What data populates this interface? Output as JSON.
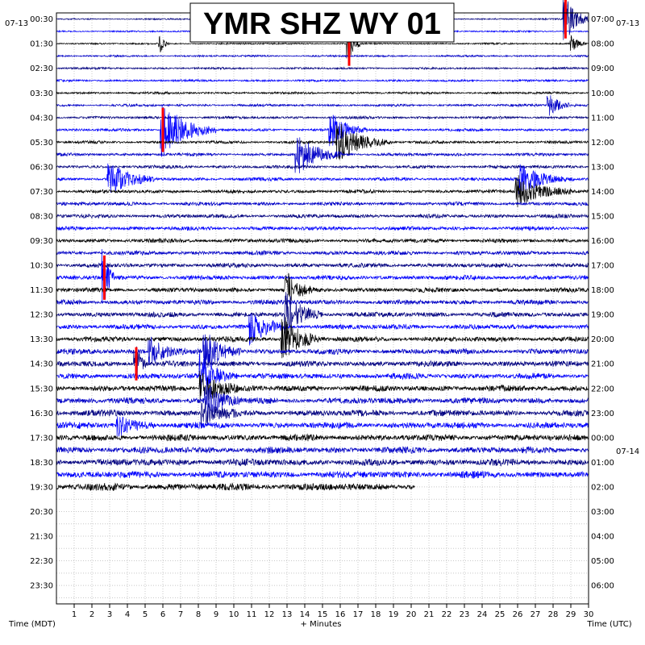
{
  "chart_data": {
    "type": "line",
    "title": "YMR SHZ WY 01",
    "xlabel": "+ Minutes",
    "ylabel_left": "Time (MDT)",
    "ylabel_right": "Time (UTC)",
    "date_left": "07-13",
    "date_right": "07-13",
    "date_right_next": "07-14",
    "xlim": [
      0,
      30
    ],
    "x_ticks": [
      1,
      2,
      3,
      4,
      5,
      6,
      7,
      8,
      9,
      10,
      11,
      12,
      13,
      14,
      15,
      16,
      17,
      18,
      19,
      20,
      21,
      22,
      23,
      24,
      25,
      26,
      27,
      28,
      29,
      30
    ],
    "row_minutes": 30,
    "left_hour_labels": [
      "00:30",
      "01:30",
      "02:30",
      "03:30",
      "04:30",
      "05:30",
      "06:30",
      "07:30",
      "08:30",
      "09:30",
      "10:30",
      "11:30",
      "12:30",
      "13:30",
      "14:30",
      "15:30",
      "16:30",
      "17:30",
      "18:30",
      "19:30",
      "20:30",
      "21:30",
      "22:30",
      "23:30"
    ],
    "right_hour_labels": [
      "07:00",
      "08:00",
      "09:00",
      "10:00",
      "11:00",
      "12:00",
      "13:00",
      "14:00",
      "15:00",
      "16:00",
      "17:00",
      "18:00",
      "19:00",
      "20:00",
      "21:00",
      "22:00",
      "23:00",
      "00:00",
      "01:00",
      "02:00",
      "03:00",
      "04:00",
      "05:00",
      "06:00"
    ],
    "series_colors": [
      "#000080",
      "#0000ff",
      "#000000",
      "#0000c8"
    ],
    "clip_color": "#ff0000",
    "total_rows": 48,
    "data_rows": 39,
    "last_row_end_minute": 20.2,
    "events": [
      {
        "row": 0,
        "minute": 28.7,
        "amp": 3.5,
        "dur": 1.5,
        "clip": true
      },
      {
        "row": 2,
        "minute": 5.9,
        "amp": 1.2,
        "dur": 0.5,
        "clip": false
      },
      {
        "row": 2,
        "minute": 16.5,
        "amp": 4.0,
        "dur": 0.6,
        "clip": true
      },
      {
        "row": 2,
        "minute": 29.1,
        "amp": 1.2,
        "dur": 0.8,
        "clip": false
      },
      {
        "row": 7,
        "minute": 27.8,
        "amp": 1.5,
        "dur": 1.5,
        "clip": false
      },
      {
        "row": 9,
        "minute": 6.0,
        "amp": 4.0,
        "dur": 3.0,
        "clip": true
      },
      {
        "row": 9,
        "minute": 15.5,
        "amp": 2.5,
        "dur": 2.0,
        "clip": false
      },
      {
        "row": 10,
        "minute": 15.9,
        "amp": 3.0,
        "dur": 3.0,
        "clip": false
      },
      {
        "row": 11,
        "minute": 13.6,
        "amp": 3.0,
        "dur": 2.5,
        "clip": false
      },
      {
        "row": 13,
        "minute": 3.0,
        "amp": 2.5,
        "dur": 2.5,
        "clip": false
      },
      {
        "row": 13,
        "minute": 26.2,
        "amp": 2.0,
        "dur": 3.0,
        "clip": false
      },
      {
        "row": 14,
        "minute": 26.0,
        "amp": 2.5,
        "dur": 3.0,
        "clip": false
      },
      {
        "row": 21,
        "minute": 2.7,
        "amp": 4.0,
        "dur": 0.6,
        "clip": true
      },
      {
        "row": 22,
        "minute": 13.0,
        "amp": 2.5,
        "dur": 1.5,
        "clip": false
      },
      {
        "row": 24,
        "minute": 13.0,
        "amp": 3.0,
        "dur": 2.0,
        "clip": false
      },
      {
        "row": 25,
        "minute": 11.0,
        "amp": 2.5,
        "dur": 2.0,
        "clip": false
      },
      {
        "row": 26,
        "minute": 12.8,
        "amp": 3.5,
        "dur": 2.0,
        "clip": false
      },
      {
        "row": 27,
        "minute": 5.3,
        "amp": 2.0,
        "dur": 2.0,
        "clip": false
      },
      {
        "row": 27,
        "minute": 8.4,
        "amp": 3.0,
        "dur": 2.0,
        "clip": false
      },
      {
        "row": 28,
        "minute": 4.5,
        "amp": 3.0,
        "dur": 0.6,
        "clip": true
      },
      {
        "row": 29,
        "minute": 8.2,
        "amp": 3.0,
        "dur": 2.0,
        "clip": false
      },
      {
        "row": 30,
        "minute": 8.2,
        "amp": 3.0,
        "dur": 2.0,
        "clip": false
      },
      {
        "row": 31,
        "minute": 8.5,
        "amp": 2.5,
        "dur": 2.0,
        "clip": false
      },
      {
        "row": 32,
        "minute": 8.3,
        "amp": 2.0,
        "dur": 2.0,
        "clip": false
      },
      {
        "row": 33,
        "minute": 3.5,
        "amp": 1.5,
        "dur": 2.0,
        "clip": false
      }
    ]
  }
}
